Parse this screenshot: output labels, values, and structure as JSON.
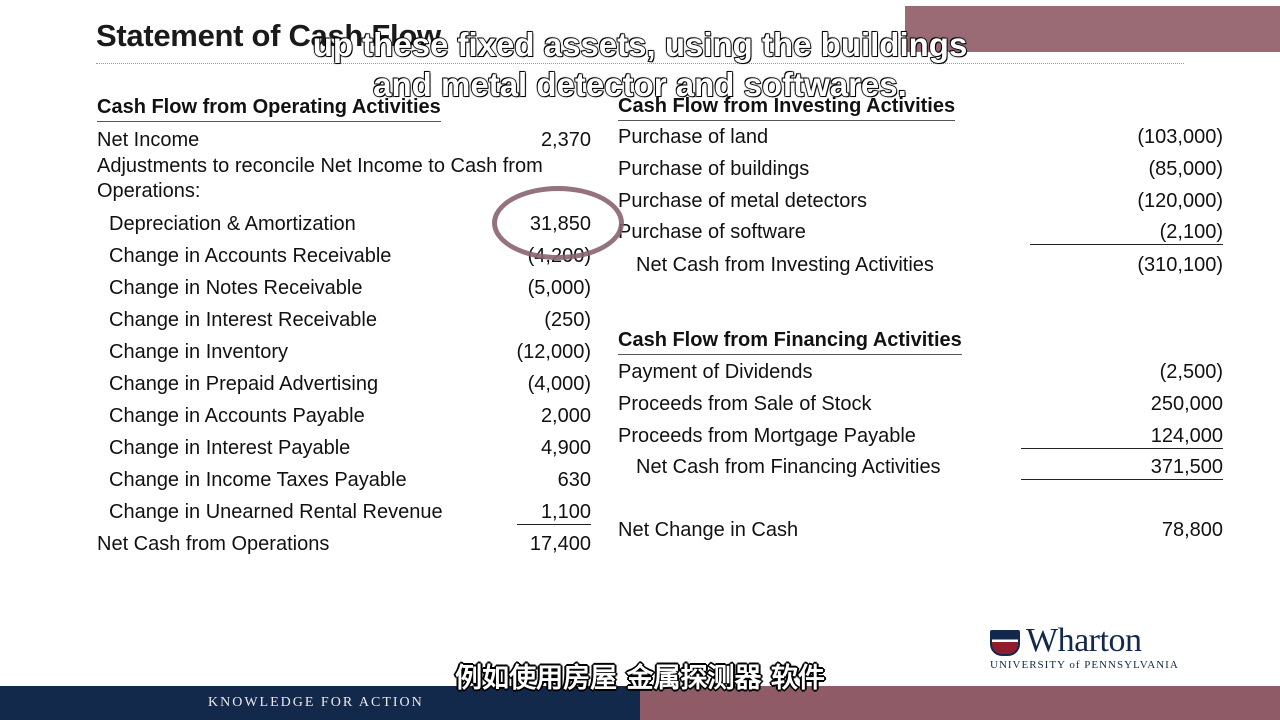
{
  "slide": {
    "title": "Statement of Cash Flow"
  },
  "subtitles": {
    "english_line1": "up these fixed assets, using the buildings",
    "english_line2": "and metal detector and softwares.",
    "chinese": "例如使用房屋 金属探测器 软件"
  },
  "operating": {
    "heading": "Cash Flow from Operating Activities",
    "net_income": {
      "label": "Net Income",
      "value": "2,370"
    },
    "adjustments_line1": "Adjustments to reconcile Net Income to Cash from",
    "adjustments_line2": "Operations:",
    "items": [
      {
        "label": "Depreciation & Amortization",
        "value": "31,850"
      },
      {
        "label": "Change in Accounts Receivable",
        "value": "(4,200)"
      },
      {
        "label": "Change in Notes Receivable",
        "value": "(5,000)"
      },
      {
        "label": "Change in Interest Receivable",
        "value": "(250)"
      },
      {
        "label": "Change in Inventory",
        "value": "(12,000)"
      },
      {
        "label": "Change in Prepaid Advertising",
        "value": "(4,000)"
      },
      {
        "label": "Change in Accounts Payable",
        "value": "2,000"
      },
      {
        "label": "Change in Interest Payable",
        "value": "4,900"
      },
      {
        "label": "Change in Income Taxes Payable",
        "value": "630"
      },
      {
        "label": "Change in Unearned Rental Revenue",
        "value": "1,100"
      }
    ],
    "total": {
      "label": "Net Cash from Operations",
      "value": "17,400"
    }
  },
  "investing": {
    "heading": "Cash Flow from Investing Activities",
    "items": [
      {
        "label": "Purchase of land",
        "value": "(103,000)"
      },
      {
        "label": "Purchase of buildings",
        "value": "(85,000)"
      },
      {
        "label": "Purchase of metal detectors",
        "value": "(120,000)"
      },
      {
        "label": "Purchase of software",
        "value": "(2,100)"
      }
    ],
    "total": {
      "label": "Net Cash from Investing Activities",
      "value": "(310,100)"
    }
  },
  "financing": {
    "heading": "Cash Flow from Financing Activities",
    "items": [
      {
        "label": "Payment of Dividends",
        "value": "(2,500)"
      },
      {
        "label": "Proceeds from Sale of Stock",
        "value": "250,000"
      },
      {
        "label": "Proceeds from Mortgage Payable",
        "value": "124,000"
      }
    ],
    "total": {
      "label": "Net Cash from Financing Activities",
      "value": "371,500"
    }
  },
  "net_change": {
    "label": "Net Change in Cash",
    "value": "78,800"
  },
  "footer": {
    "tagline": "KNOWLEDGE FOR ACTION"
  },
  "logo": {
    "wordmark": "Wharton",
    "subline": "UNIVERSITY of PENNSYLVANIA"
  },
  "colors": {
    "navy": "#13294b",
    "maroon": "#8f5b66",
    "annotation": "#8a6470"
  }
}
